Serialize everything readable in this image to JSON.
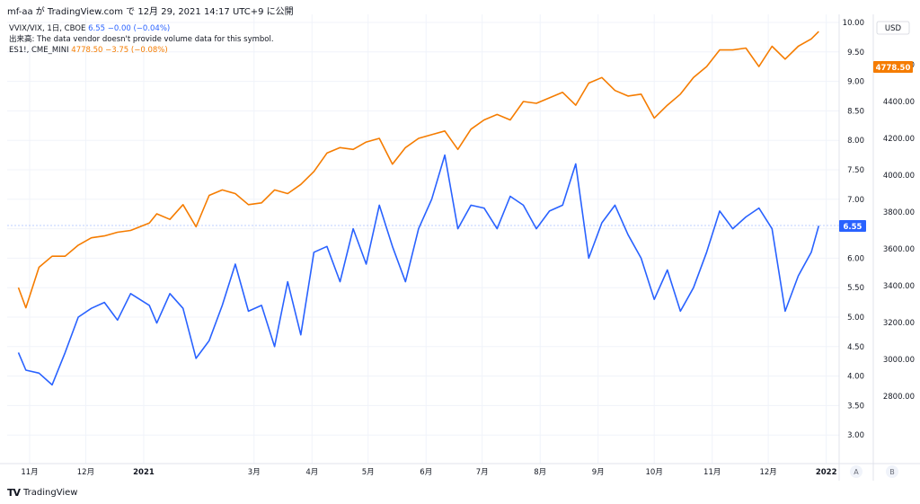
{
  "header": {
    "text": "mf-aa が TradingView.com で 12月 29, 2021 14:17 UTC+9 に公開"
  },
  "legend": {
    "vvix_label": "VVIX/VIX, 1日, CBOE",
    "vvix_value": "6.55",
    "vvix_change": "−0.00 (−0.04%)",
    "volume_note": "出来高: The data vendor doesn't provide volume data for this symbol.",
    "es_label": "ES1!, CME_MINI",
    "es_value": "4778.50",
    "es_change": "−3.75 (−0.08%)"
  },
  "brand": {
    "name": "TradingView",
    "logo": "TV"
  },
  "colors": {
    "vvix": "#2962ff",
    "es": "#f57c00",
    "grid": "#f0f3fa",
    "axis_text": "#131722"
  },
  "chart_data": {
    "type": "line",
    "x_axis": {
      "labels": [
        "11月",
        "12月",
        "2021",
        "3月",
        "4月",
        "5月",
        "6月",
        "7月",
        "8月",
        "9月",
        "10月",
        "11月",
        "12月",
        "2022"
      ],
      "bold_labels": [
        "2021",
        "2022"
      ]
    },
    "y_left": {
      "ticks": [
        "10.00",
        "9.50",
        "9.00",
        "8.50",
        "8.00",
        "7.50",
        "7.00",
        "6.50",
        "6.00",
        "5.50",
        "5.00",
        "4.50",
        "4.00",
        "3.50",
        "3.00"
      ],
      "range": [
        2.5,
        10.0
      ]
    },
    "y_right": {
      "unit": "USD",
      "ticks": [
        "4600.00",
        "4400.00",
        "4200.00",
        "4000.00",
        "3800.00",
        "3600.00",
        "3400.00",
        "3200.00",
        "3000.00",
        "2800.00"
      ],
      "range": [
        2600,
        4800
      ]
    },
    "last_value_badges": {
      "vvix": "6.55",
      "es": "4778.50"
    },
    "scale_buttons": [
      "A",
      "B"
    ],
    "series": [
      {
        "name": "VVIX/VIX",
        "axis": "left",
        "dates": [
          "2020-10-26",
          "2020-10-30",
          "2020-11-06",
          "2020-11-13",
          "2020-11-20",
          "2020-11-27",
          "2020-12-04",
          "2020-12-11",
          "2020-12-18",
          "2020-12-25",
          "2021-01-04",
          "2021-01-08",
          "2021-01-15",
          "2021-01-22",
          "2021-01-29",
          "2021-02-05",
          "2021-02-12",
          "2021-02-19",
          "2021-02-26",
          "2021-03-05",
          "2021-03-12",
          "2021-03-19",
          "2021-03-26",
          "2021-04-02",
          "2021-04-09",
          "2021-04-16",
          "2021-04-23",
          "2021-04-30",
          "2021-05-07",
          "2021-05-14",
          "2021-05-21",
          "2021-05-28",
          "2021-06-04",
          "2021-06-11",
          "2021-06-18",
          "2021-06-25",
          "2021-07-02",
          "2021-07-09",
          "2021-07-16",
          "2021-07-23",
          "2021-07-30",
          "2021-08-06",
          "2021-08-13",
          "2021-08-20",
          "2021-08-27",
          "2021-09-03",
          "2021-09-10",
          "2021-09-17",
          "2021-09-24",
          "2021-10-01",
          "2021-10-08",
          "2021-10-15",
          "2021-10-22",
          "2021-10-29",
          "2021-11-05",
          "2021-11-12",
          "2021-11-19",
          "2021-11-26",
          "2021-12-03",
          "2021-12-10",
          "2021-12-17",
          "2021-12-24",
          "2021-12-28"
        ],
        "values": [
          4.4,
          4.1,
          4.05,
          3.85,
          4.4,
          5.0,
          5.15,
          5.25,
          4.95,
          5.4,
          5.2,
          4.9,
          5.4,
          5.15,
          4.3,
          4.6,
          5.2,
          5.9,
          5.1,
          5.2,
          4.5,
          5.6,
          4.7,
          6.1,
          6.2,
          5.6,
          6.5,
          5.9,
          6.9,
          6.2,
          5.6,
          6.5,
          7.0,
          7.75,
          6.5,
          6.9,
          6.85,
          6.5,
          7.05,
          6.9,
          6.5,
          6.8,
          6.9,
          7.6,
          6.0,
          6.6,
          6.9,
          6.4,
          6.0,
          5.3,
          5.8,
          5.1,
          5.5,
          6.1,
          6.8,
          6.5,
          6.7,
          6.85,
          6.5,
          5.1,
          5.7,
          6.1,
          6.55
        ]
      },
      {
        "name": "ES1!",
        "axis": "right",
        "dates": [
          "2020-10-26",
          "2020-10-30",
          "2020-11-06",
          "2020-11-13",
          "2020-11-20",
          "2020-11-27",
          "2020-12-04",
          "2020-12-11",
          "2020-12-18",
          "2020-12-25",
          "2021-01-04",
          "2021-01-08",
          "2021-01-15",
          "2021-01-22",
          "2021-01-29",
          "2021-02-05",
          "2021-02-12",
          "2021-02-19",
          "2021-02-26",
          "2021-03-05",
          "2021-03-12",
          "2021-03-19",
          "2021-03-26",
          "2021-04-02",
          "2021-04-09",
          "2021-04-16",
          "2021-04-23",
          "2021-04-30",
          "2021-05-07",
          "2021-05-14",
          "2021-05-21",
          "2021-05-28",
          "2021-06-04",
          "2021-06-11",
          "2021-06-18",
          "2021-06-25",
          "2021-07-02",
          "2021-07-09",
          "2021-07-16",
          "2021-07-23",
          "2021-07-30",
          "2021-08-06",
          "2021-08-13",
          "2021-08-20",
          "2021-08-27",
          "2021-09-03",
          "2021-09-10",
          "2021-09-17",
          "2021-09-24",
          "2021-10-01",
          "2021-10-08",
          "2021-10-15",
          "2021-10-22",
          "2021-10-29",
          "2021-11-05",
          "2021-11-12",
          "2021-11-19",
          "2021-11-26",
          "2021-12-03",
          "2021-12-10",
          "2021-12-17",
          "2021-12-24",
          "2021-12-28"
        ],
        "values": [
          3390,
          3280,
          3500,
          3560,
          3560,
          3620,
          3660,
          3670,
          3690,
          3700,
          3740,
          3790,
          3760,
          3840,
          3720,
          3890,
          3920,
          3900,
          3840,
          3850,
          3920,
          3900,
          3950,
          4020,
          4120,
          4150,
          4140,
          4180,
          4200,
          4060,
          4150,
          4200,
          4220,
          4240,
          4140,
          4250,
          4300,
          4330,
          4300,
          4400,
          4390,
          4420,
          4450,
          4380,
          4500,
          4530,
          4460,
          4430,
          4440,
          4310,
          4380,
          4440,
          4530,
          4590,
          4680,
          4680,
          4690,
          4590,
          4700,
          4630,
          4700,
          4740,
          4780
        ]
      }
    ]
  }
}
